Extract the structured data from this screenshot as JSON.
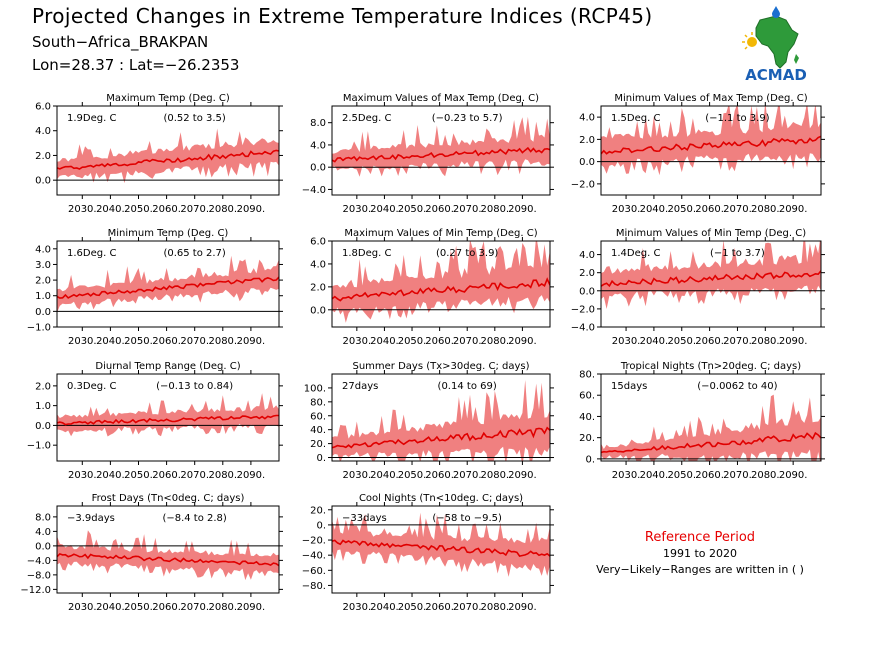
{
  "header": {
    "title": "Projected Changes in Extreme Temperature Indices (RCP45)",
    "subtitle": "South−Africa_BRAKPAN",
    "coords": "Lon=28.37 : Lat=−26.2353"
  },
  "logo": {
    "text": "ACMAD",
    "icon": "africa-map-icon",
    "colors": {
      "africa": "#2e9a3a",
      "text": "#1a5fb4",
      "drop": "#1a6fd0",
      "sun": "#f2b705"
    }
  },
  "reference": {
    "title": "Reference Period",
    "years": "1991 to 2020",
    "note": "Very−Likely−Ranges are written in ( )"
  },
  "colors": {
    "band": "#f08080",
    "line": "#e00000",
    "zero": "#000000"
  },
  "chart_data": [
    {
      "type": "area",
      "title": "Maximum Temp (Deg. C)",
      "change": "1.9Deg. C",
      "range": "(0.52 to 3.5)",
      "xlim": [
        2021,
        2100
      ],
      "ylim": [
        -1.2,
        6.0
      ],
      "yticks": [
        {
          "v": 0,
          "l": "0.0"
        },
        {
          "v": 2,
          "l": "2.0"
        },
        {
          "v": 4,
          "l": "4.0"
        },
        {
          "v": 6,
          "l": "6.0"
        }
      ],
      "xticks": [
        2030,
        2040,
        2050,
        2060,
        2070,
        2080,
        2090
      ],
      "xtick_labels": [
        "2030.",
        "2040.",
        "2050.",
        "2060.",
        "2070.",
        "2080.",
        "2090."
      ],
      "trend": [
        0.9,
        2.3
      ],
      "spread": [
        0.9,
        1.2
      ]
    },
    {
      "type": "area",
      "title": "Maximum Values of Max Temp (Deg. C)",
      "change": "2.5Deg. C",
      "range": "(−0.23 to 5.7)",
      "xlim": [
        2021,
        2100
      ],
      "ylim": [
        -5.0,
        11.0
      ],
      "yticks": [
        {
          "v": -4,
          "l": "−4.0"
        },
        {
          "v": 0,
          "l": "0.0"
        },
        {
          "v": 4,
          "l": "4.0"
        },
        {
          "v": 8,
          "l": "8.0"
        }
      ],
      "xticks": [
        2030,
        2040,
        2050,
        2060,
        2070,
        2080,
        2090
      ],
      "xtick_labels": [
        "2030.",
        "2040.",
        "2050.",
        "2060.",
        "2070.",
        "2080.",
        "2090."
      ],
      "trend": [
        1.3,
        3.2
      ],
      "spread": [
        2.0,
        2.8
      ]
    },
    {
      "type": "area",
      "title": "Minimum Values of Max Temp (Deg. C)",
      "change": "1.5Deg. C",
      "range": "(−1.1 to 3.9)",
      "xlim": [
        2021,
        2100
      ],
      "ylim": [
        -3.0,
        5.0
      ],
      "yticks": [
        {
          "v": -2,
          "l": "−2.0"
        },
        {
          "v": 0,
          "l": "0.0"
        },
        {
          "v": 2,
          "l": "2.0"
        },
        {
          "v": 4,
          "l": "4.0"
        }
      ],
      "xticks": [
        2030,
        2040,
        2050,
        2060,
        2070,
        2080,
        2090
      ],
      "xtick_labels": [
        "2030.",
        "2040.",
        "2050.",
        "2060.",
        "2070.",
        "2080.",
        "2090."
      ],
      "trend": [
        0.9,
        2.0
      ],
      "spread": [
        1.4,
        1.7
      ]
    },
    {
      "type": "area",
      "title": "Minimum Temp (Deg. C)",
      "change": "1.6Deg. C",
      "range": "(0.65 to 2.7)",
      "xlim": [
        2021,
        2100
      ],
      "ylim": [
        -1.0,
        4.5
      ],
      "yticks": [
        {
          "v": -1,
          "l": "−1.0"
        },
        {
          "v": 0,
          "l": "0.0"
        },
        {
          "v": 1,
          "l": "1.0"
        },
        {
          "v": 2,
          "l": "2.0"
        },
        {
          "v": 3,
          "l": "3.0"
        },
        {
          "v": 4,
          "l": "4.0"
        }
      ],
      "xticks": [
        2030,
        2040,
        2050,
        2060,
        2070,
        2080,
        2090
      ],
      "xtick_labels": [
        "2030.",
        "2040.",
        "2050.",
        "2060.",
        "2070.",
        "2080.",
        "2090."
      ],
      "trend": [
        0.9,
        2.1
      ],
      "spread": [
        0.6,
        0.8
      ]
    },
    {
      "type": "area",
      "title": "Maximum Values of Min Temp (Deg. C)",
      "change": "1.8Deg. C",
      "range": "(0.27 to 3.9)",
      "xlim": [
        2021,
        2100
      ],
      "ylim": [
        -1.5,
        6.0
      ],
      "yticks": [
        {
          "v": 0,
          "l": "0.0"
        },
        {
          "v": 2,
          "l": "2.0"
        },
        {
          "v": 4,
          "l": "4.0"
        },
        {
          "v": 6,
          "l": "6.0"
        }
      ],
      "xticks": [
        2030,
        2040,
        2050,
        2060,
        2070,
        2080,
        2090
      ],
      "xtick_labels": [
        "2030.",
        "2040.",
        "2050.",
        "2060.",
        "2070.",
        "2080.",
        "2090."
      ],
      "trend": [
        1.0,
        2.4
      ],
      "spread": [
        1.4,
        1.9
      ]
    },
    {
      "type": "area",
      "title": "Minimum Values of Min Temp (Deg. C)",
      "change": "1.4Deg. C",
      "range": "(−1 to 3.7)",
      "xlim": [
        2021,
        2100
      ],
      "ylim": [
        -4.0,
        5.5
      ],
      "yticks": [
        {
          "v": -4,
          "l": "−4.0"
        },
        {
          "v": -2,
          "l": "−2.0"
        },
        {
          "v": 0,
          "l": "0.0"
        },
        {
          "v": 2,
          "l": "2.0"
        },
        {
          "v": 4,
          "l": "4.0"
        }
      ],
      "xticks": [
        2030,
        2040,
        2050,
        2060,
        2070,
        2080,
        2090
      ],
      "xtick_labels": [
        "2030.",
        "2040.",
        "2050.",
        "2060.",
        "2070.",
        "2080.",
        "2090."
      ],
      "trend": [
        0.8,
        1.9
      ],
      "spread": [
        1.8,
        2.2
      ]
    },
    {
      "type": "area",
      "title": "Diurnal Temp Range (Deg. C)",
      "change": "0.3Deg. C",
      "range": "(−0.13 to 0.84)",
      "xlim": [
        2021,
        2100
      ],
      "ylim": [
        -1.8,
        2.6
      ],
      "yticks": [
        {
          "v": -1,
          "l": "−1.0"
        },
        {
          "v": 0,
          "l": "0.0"
        },
        {
          "v": 1,
          "l": "1.0"
        },
        {
          "v": 2,
          "l": "2.0"
        }
      ],
      "xticks": [
        2030,
        2040,
        2050,
        2060,
        2070,
        2080,
        2090
      ],
      "xtick_labels": [
        "2030.",
        "2040.",
        "2050.",
        "2060.",
        "2070.",
        "2080.",
        "2090."
      ],
      "trend": [
        0.1,
        0.45
      ],
      "spread": [
        0.45,
        0.55
      ]
    },
    {
      "type": "area",
      "title": "Summer Days (Tx>30deg. C; days)",
      "change": "27days",
      "range": "(0.14 to 69)",
      "xlim": [
        2021,
        2100
      ],
      "ylim": [
        -5,
        120
      ],
      "yticks": [
        {
          "v": 0,
          "l": "0."
        },
        {
          "v": 20,
          "l": "20."
        },
        {
          "v": 40,
          "l": "40."
        },
        {
          "v": 60,
          "l": "60."
        },
        {
          "v": 80,
          "l": "80."
        },
        {
          "v": 100,
          "l": "100."
        }
      ],
      "xticks": [
        2030,
        2040,
        2050,
        2060,
        2070,
        2080,
        2090
      ],
      "xtick_labels": [
        "2030.",
        "2040.",
        "2050.",
        "2060.",
        "2070.",
        "2080.",
        "2090."
      ],
      "trend": [
        15,
        38
      ],
      "spread": [
        15,
        35
      ]
    },
    {
      "type": "area",
      "title": "Tropical Nights (Tn>20deg. C; days)",
      "change": "15days",
      "range": "(−0.0062 to 40)",
      "xlim": [
        2021,
        2100
      ],
      "ylim": [
        -2,
        80
      ],
      "yticks": [
        {
          "v": 0,
          "l": "0."
        },
        {
          "v": 20,
          "l": "20."
        },
        {
          "v": 40,
          "l": "40."
        },
        {
          "v": 60,
          "l": "60."
        },
        {
          "v": 80,
          "l": "80."
        }
      ],
      "xticks": [
        2030,
        2040,
        2050,
        2060,
        2070,
        2080,
        2090
      ],
      "xtick_labels": [
        "2030.",
        "2040.",
        "2050.",
        "2060.",
        "2070.",
        "2080.",
        "2090."
      ],
      "trend": [
        6,
        22
      ],
      "spread": [
        5,
        22
      ]
    },
    {
      "type": "area",
      "title": "Frost Days (Tn<0deg. C; days)",
      "change": "−3.9days",
      "range": "(−8.4 to 2.8)",
      "xlim": [
        2021,
        2100
      ],
      "ylim": [
        -13,
        11
      ],
      "yticks": [
        {
          "v": -12,
          "l": "−12.0"
        },
        {
          "v": -8,
          "l": "−8.0"
        },
        {
          "v": -4,
          "l": "−4.0"
        },
        {
          "v": 0,
          "l": "0.0"
        },
        {
          "v": 4,
          "l": "4.0"
        },
        {
          "v": 8,
          "l": "8.0"
        }
      ],
      "xticks": [
        2030,
        2040,
        2050,
        2060,
        2070,
        2080,
        2090
      ],
      "xtick_labels": [
        "2030.",
        "2040.",
        "2050.",
        "2060.",
        "2070.",
        "2080.",
        "2090."
      ],
      "trend": [
        -2.5,
        -5.0
      ],
      "spread": [
        3.0,
        3.0
      ]
    },
    {
      "type": "area",
      "title": "Cool Nights (Tn<10deg. C; days)",
      "change": "−33days",
      "range": "(−58 to −9.5)",
      "xlim": [
        2021,
        2100
      ],
      "ylim": [
        -90,
        25
      ],
      "yticks": [
        {
          "v": -80,
          "l": "−80."
        },
        {
          "v": -60,
          "l": "−60."
        },
        {
          "v": -40,
          "l": "−40."
        },
        {
          "v": -20,
          "l": "−20."
        },
        {
          "v": 0,
          "l": "0."
        },
        {
          "v": 20,
          "l": "20."
        }
      ],
      "xticks": [
        2030,
        2040,
        2050,
        2060,
        2070,
        2080,
        2090
      ],
      "xtick_labels": [
        "2030.",
        "2040.",
        "2050.",
        "2060.",
        "2070.",
        "2080.",
        "2090."
      ],
      "trend": [
        -22,
        -40
      ],
      "spread": [
        16,
        22
      ]
    }
  ]
}
